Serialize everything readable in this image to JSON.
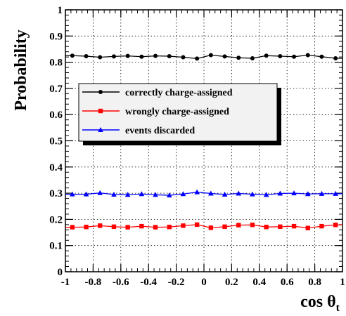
{
  "chart_data": {
    "type": "line",
    "title": "",
    "xlabel": "cos θ",
    "xlabel_sub": "t",
    "ylabel": "Probability",
    "xlim": [
      -1,
      1
    ],
    "ylim": [
      0,
      1
    ],
    "x_ticks": [
      "-1",
      "-0.8",
      "-0.6",
      "-0.4",
      "-0.2",
      "0",
      "0.2",
      "0.4",
      "0.6",
      "0.8",
      "1"
    ],
    "y_ticks": [
      "0",
      "0.1",
      "0.2",
      "0.3",
      "0.4",
      "0.5",
      "0.6",
      "0.7",
      "0.8",
      "0.9",
      "1"
    ],
    "x_tick_values": [
      -1,
      -0.8,
      -0.6,
      -0.4,
      -0.2,
      0,
      0.2,
      0.4,
      0.6,
      0.8,
      1
    ],
    "y_tick_values": [
      0,
      0.1,
      0.2,
      0.3,
      0.4,
      0.5,
      0.6,
      0.7,
      0.8,
      0.9,
      1
    ],
    "grid": true,
    "legend_position": "upper-left",
    "x": [
      -0.95,
      -0.85,
      -0.75,
      -0.65,
      -0.55,
      -0.45,
      -0.35,
      -0.25,
      -0.15,
      -0.05,
      0.05,
      0.15,
      0.25,
      0.35,
      0.45,
      0.55,
      0.65,
      0.75,
      0.85,
      0.95
    ],
    "series": [
      {
        "name": "correctly charge-assigned",
        "color": "#000000",
        "marker": "circle",
        "values": [
          0.825,
          0.823,
          0.819,
          0.822,
          0.824,
          0.821,
          0.824,
          0.823,
          0.819,
          0.814,
          0.827,
          0.822,
          0.817,
          0.815,
          0.825,
          0.823,
          0.821,
          0.827,
          0.821,
          0.815
        ]
      },
      {
        "name": "wrongly charge-assigned",
        "color": "#ff0000",
        "marker": "square",
        "values": [
          0.17,
          0.171,
          0.176,
          0.172,
          0.17,
          0.174,
          0.17,
          0.171,
          0.176,
          0.18,
          0.168,
          0.172,
          0.178,
          0.179,
          0.171,
          0.172,
          0.174,
          0.167,
          0.174,
          0.179
        ]
      },
      {
        "name": "events discarded",
        "color": "#0000ff",
        "marker": "triangle",
        "values": [
          0.296,
          0.296,
          0.301,
          0.295,
          0.294,
          0.297,
          0.294,
          0.292,
          0.297,
          0.304,
          0.299,
          0.295,
          0.299,
          0.296,
          0.294,
          0.299,
          0.3,
          0.297,
          0.298,
          0.298
        ]
      }
    ]
  }
}
